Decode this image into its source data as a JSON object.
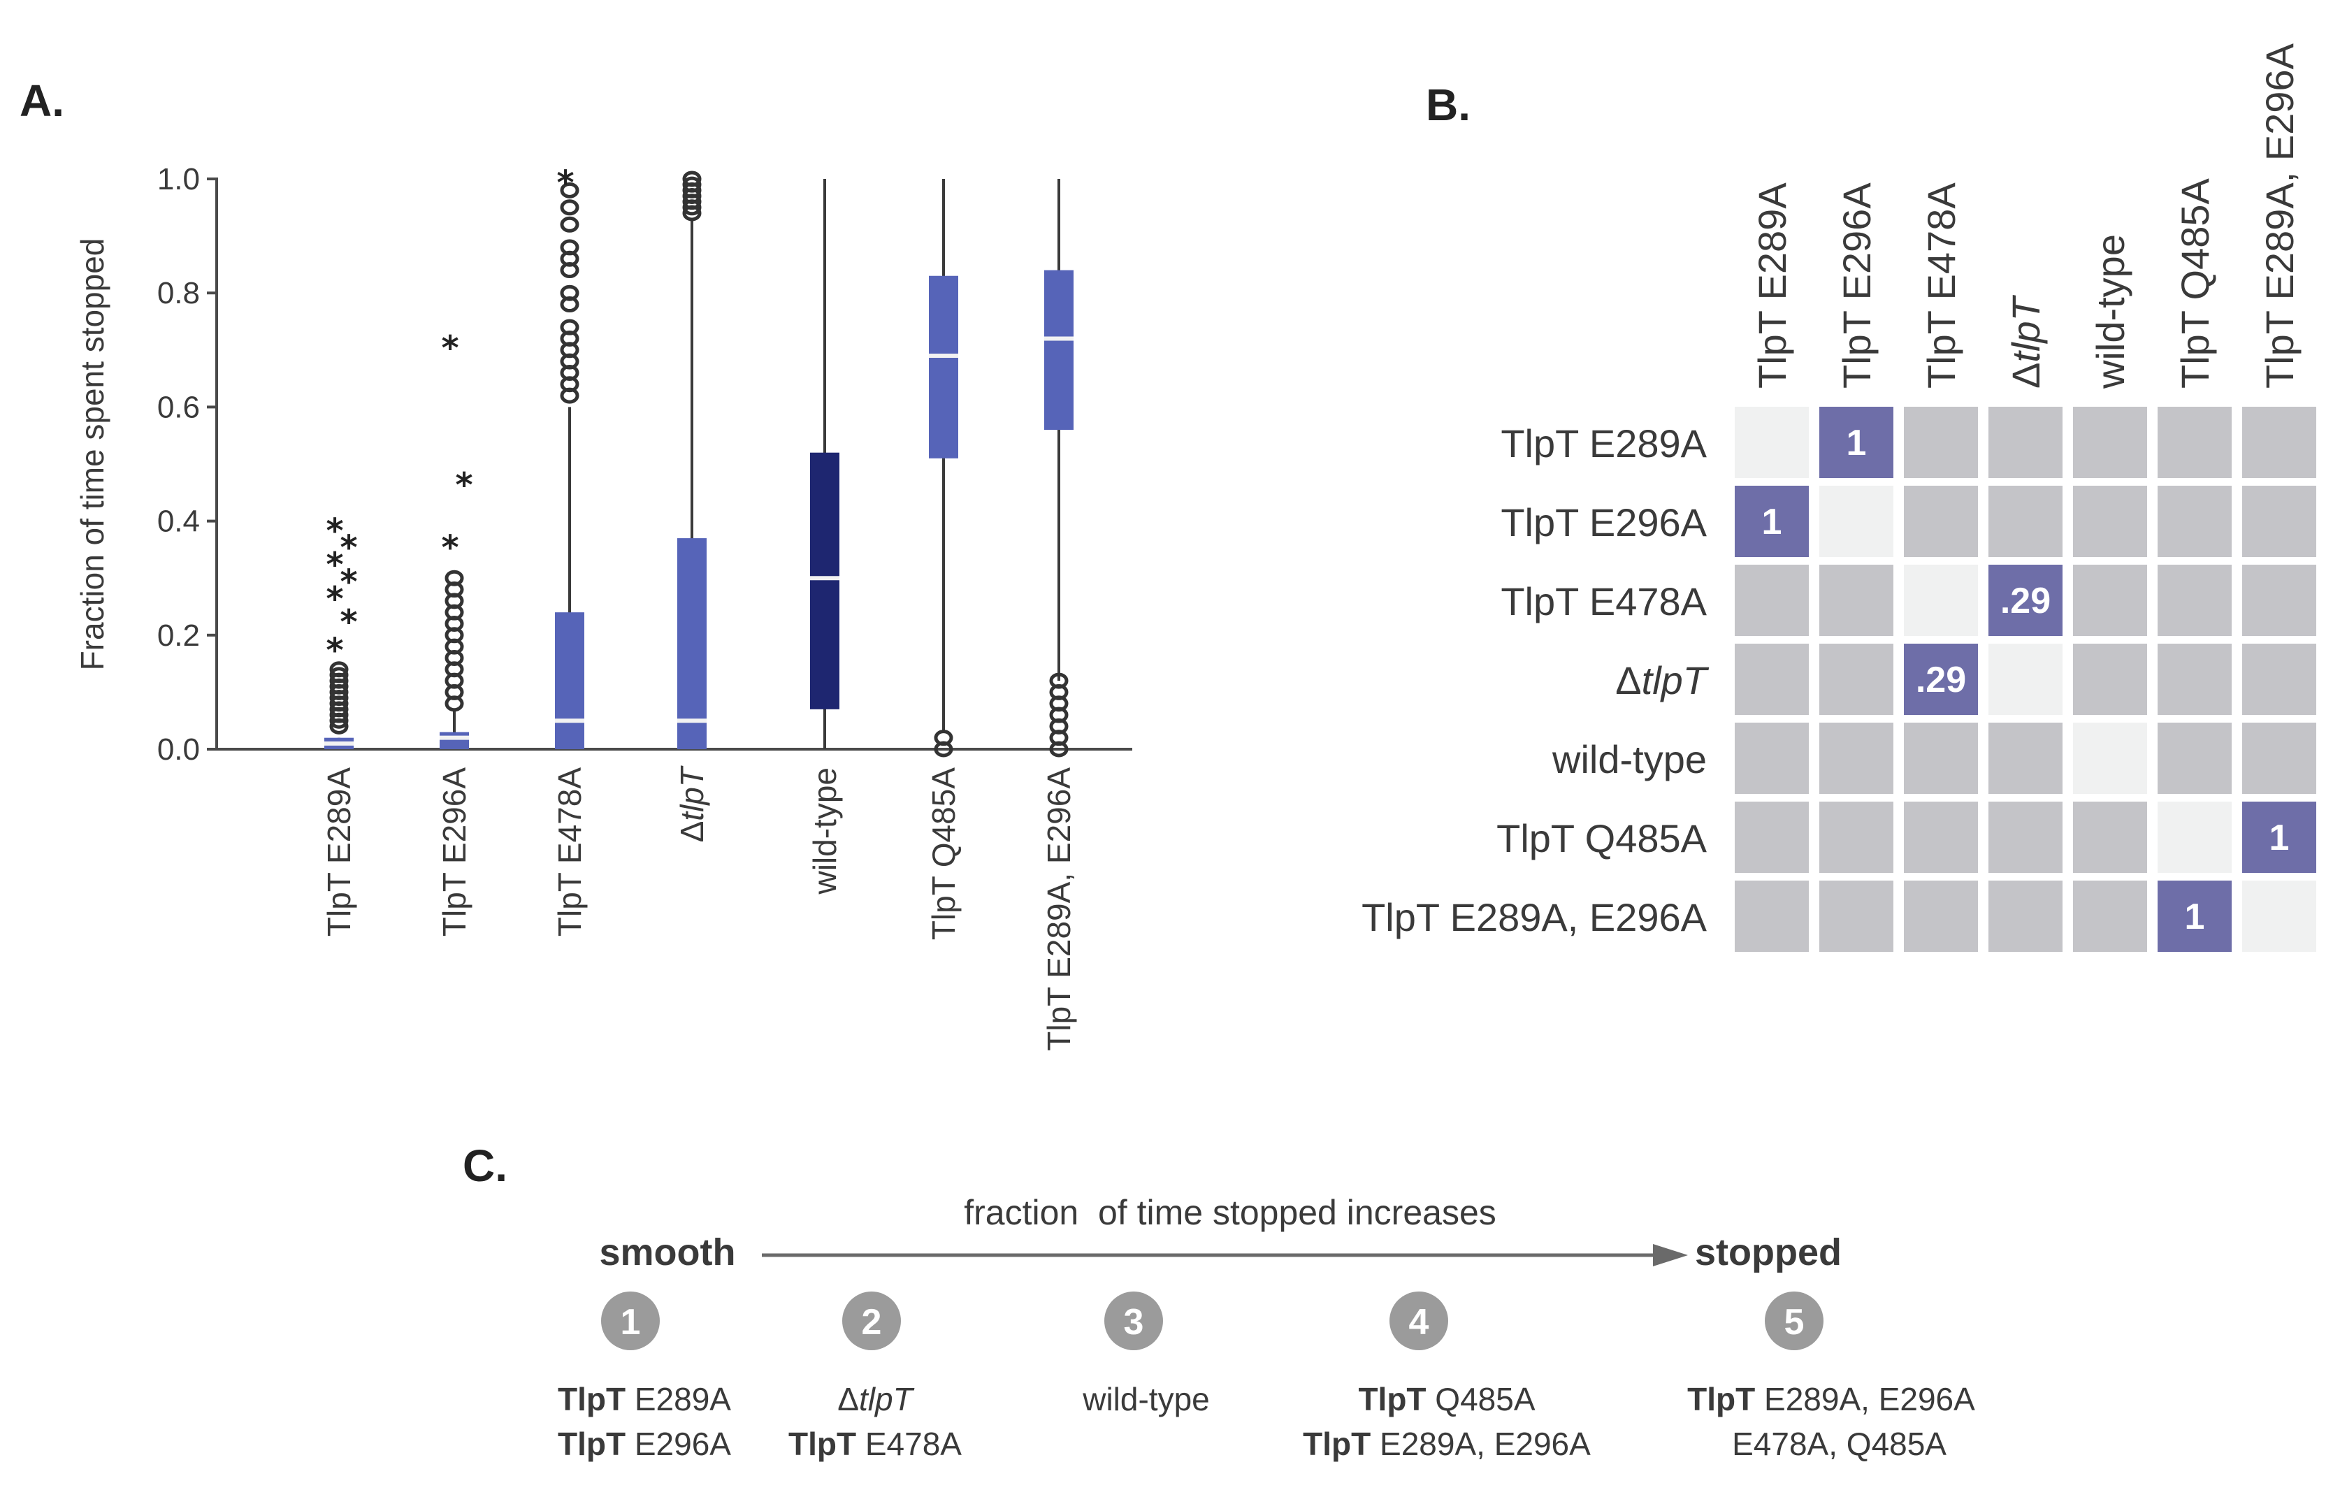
{
  "panel_labels": {
    "a": "A.",
    "b": "B.",
    "c": "C."
  },
  "colors": {
    "box": "#5664b8",
    "box_dark": "#1e2670",
    "median": "#f2f2f2",
    "cell_gray": "#c4c4c8",
    "cell_diag": "#f0f1f1",
    "cell_hl": "#6e6ea8",
    "circle": "#9b9b9b"
  },
  "chart_data": [
    {
      "type": "box",
      "ylabel": "Fraction of time spent stopped",
      "ylim": [
        0,
        1.0
      ],
      "yticks": [
        "0.0",
        "0.2",
        "0.4",
        "0.6",
        "0.8",
        "1.0"
      ],
      "categories": [
        {
          "prefix": "",
          "name": "TlpT E289A",
          "italic": "",
          "q1": 0.0,
          "median": 0.01,
          "q3": 0.02,
          "whisker_low": 0.0,
          "whisker_high": 0.02,
          "outliers": [
            0.04,
            0.05,
            0.06,
            0.07,
            0.08,
            0.09,
            0.1,
            0.11,
            0.12,
            0.13,
            0.14
          ],
          "stars": [
            0.18,
            0.23,
            0.27,
            0.3,
            0.33,
            0.36,
            0.39
          ]
        },
        {
          "prefix": "",
          "name": "TlpT E296A",
          "italic": "",
          "q1": 0.0,
          "median": 0.02,
          "q3": 0.03,
          "whisker_low": 0.0,
          "whisker_high": 0.07,
          "outliers": [
            0.08,
            0.1,
            0.12,
            0.14,
            0.16,
            0.18,
            0.2,
            0.22,
            0.24,
            0.26,
            0.28,
            0.3
          ],
          "stars": [
            0.36,
            0.47,
            0.71
          ]
        },
        {
          "prefix": "",
          "name": "TlpT E478A",
          "italic": "",
          "q1": 0.0,
          "median": 0.05,
          "q3": 0.24,
          "whisker_low": 0.0,
          "whisker_high": 0.6,
          "outliers": [
            0.62,
            0.64,
            0.66,
            0.68,
            0.7,
            0.72,
            0.74,
            0.78,
            0.8,
            0.84,
            0.86,
            0.88,
            0.92,
            0.95,
            0.98
          ],
          "stars": [
            1.0
          ]
        },
        {
          "prefix": "Δ",
          "name": "",
          "italic": "tlpT",
          "q1": 0.0,
          "median": 0.05,
          "q3": 0.37,
          "whisker_low": 0.0,
          "whisker_high": 0.93,
          "outliers": [
            0.94,
            0.95,
            0.96,
            0.97,
            0.98,
            0.99,
            1.0
          ],
          "stars": []
        },
        {
          "prefix": "",
          "name": "wild-type",
          "italic": "",
          "q1": 0.07,
          "median": 0.3,
          "q3": 0.52,
          "whisker_low": 0.0,
          "whisker_high": 1.0,
          "outliers": [],
          "stars": [],
          "dark": true
        },
        {
          "prefix": "",
          "name": "TlpT Q485A",
          "italic": "",
          "q1": 0.51,
          "median": 0.69,
          "q3": 0.83,
          "whisker_low": 0.03,
          "whisker_high": 1.0,
          "outliers": [
            0.0,
            0.02
          ],
          "stars": []
        },
        {
          "prefix": "",
          "name": "TlpT E289A, E296A",
          "italic": "",
          "q1": 0.56,
          "median": 0.72,
          "q3": 0.84,
          "whisker_low": 0.12,
          "whisker_high": 1.0,
          "outliers": [
            0.0,
            0.02,
            0.04,
            0.06,
            0.08,
            0.1,
            0.12
          ],
          "stars": []
        }
      ]
    },
    {
      "type": "heatmap",
      "rows": [
        {
          "prefix": "",
          "name": "TlpT E289A",
          "italic": ""
        },
        {
          "prefix": "",
          "name": "TlpT E296A",
          "italic": ""
        },
        {
          "prefix": "",
          "name": "TlpT E478A",
          "italic": ""
        },
        {
          "prefix": "Δ",
          "name": "",
          "italic": "tlpT"
        },
        {
          "prefix": "",
          "name": "wild-type",
          "italic": ""
        },
        {
          "prefix": "",
          "name": "TlpT Q485A",
          "italic": ""
        },
        {
          "prefix": "",
          "name": "TlpT E289A, E296A",
          "italic": ""
        }
      ],
      "columns": [
        {
          "prefix": "",
          "name": "TlpT E289A",
          "italic": ""
        },
        {
          "prefix": "",
          "name": "TlpT E296A",
          "italic": ""
        },
        {
          "prefix": "",
          "name": "TlpT E478A",
          "italic": ""
        },
        {
          "prefix": "Δ",
          "name": "",
          "italic": "tlpT"
        },
        {
          "prefix": "",
          "name": "wild-type",
          "italic": ""
        },
        {
          "prefix": "",
          "name": "TlpT Q485A",
          "italic": ""
        },
        {
          "prefix": "",
          "name": "TlpT E289A, E296A",
          "italic": ""
        }
      ],
      "cells": [
        {
          "row": 0,
          "col": 1,
          "label": "1"
        },
        {
          "row": 1,
          "col": 0,
          "label": "1"
        },
        {
          "row": 2,
          "col": 3,
          "label": ".29"
        },
        {
          "row": 3,
          "col": 2,
          "label": ".29"
        },
        {
          "row": 5,
          "col": 6,
          "label": "1"
        },
        {
          "row": 6,
          "col": 5,
          "label": "1"
        }
      ]
    }
  ],
  "ranking": {
    "left_end": "smooth",
    "right_end": "stopped",
    "arrow_text": "fraction  of time stopped increases",
    "groups": [
      {
        "num": "1",
        "lines": [
          [
            {
              "t": "TlpT",
              "s": "bold"
            },
            {
              "t": " E289A",
              "s": ""
            }
          ],
          [
            {
              "t": "TlpT",
              "s": "bold"
            },
            {
              "t": " E296A",
              "s": ""
            }
          ]
        ]
      },
      {
        "num": "2",
        "lines": [
          [
            {
              "t": "Δ",
              "s": ""
            },
            {
              "t": "tlpT",
              "s": "ital"
            }
          ],
          [
            {
              "t": "TlpT",
              "s": "bold"
            },
            {
              "t": " E478A",
              "s": ""
            }
          ]
        ]
      },
      {
        "num": "3",
        "lines": [
          [
            {
              "t": "wild-type",
              "s": ""
            }
          ]
        ]
      },
      {
        "num": "4",
        "lines": [
          [
            {
              "t": "TlpT",
              "s": "bold"
            },
            {
              "t": " Q485A",
              "s": ""
            }
          ],
          [
            {
              "t": "TlpT",
              "s": "bold"
            },
            {
              "t": " E289A, E296A",
              "s": ""
            }
          ]
        ]
      },
      {
        "num": "5",
        "lines": [
          [
            {
              "t": "TlpT",
              "s": "bold"
            },
            {
              "t": " E289A, E296A",
              "s": ""
            }
          ],
          [
            {
              "t": "E478A, Q485A",
              "s": ""
            }
          ]
        ]
      }
    ]
  }
}
